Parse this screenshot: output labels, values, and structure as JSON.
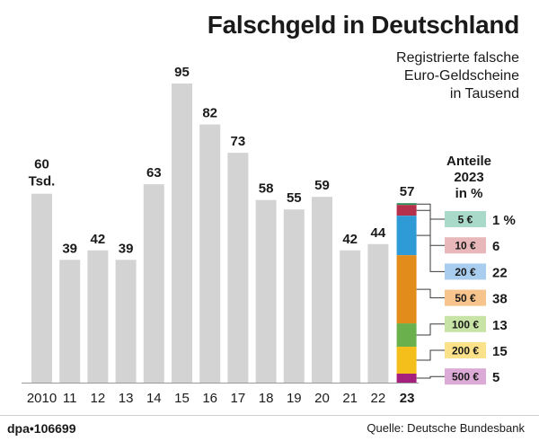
{
  "header": {
    "title": "Falschgeld in Deutschland",
    "subtitle_lines": [
      "Registrierte falsche",
      "Euro-Geldscheine",
      "in Tausend"
    ]
  },
  "footer": {
    "credit": "dpa•106699",
    "source": "Quelle: Deutsche Bundesbank"
  },
  "chart_data": [
    {
      "type": "bar",
      "title": "Falschgeld in Deutschland",
      "ylabel": "Registrierte falsche Euro-Geldscheine in Tausend",
      "categories": [
        "2010",
        "11",
        "12",
        "13",
        "14",
        "15",
        "16",
        "17",
        "18",
        "19",
        "20",
        "21",
        "22",
        "23"
      ],
      "values": [
        60,
        39,
        42,
        39,
        63,
        95,
        82,
        73,
        58,
        55,
        59,
        42,
        44,
        57
      ],
      "first_value_unit": "Tsd.",
      "highlight_category": "23",
      "ylim": [
        0,
        95
      ],
      "grid": false,
      "bar_color": "#d3d3d3"
    },
    {
      "type": "stacked-bar",
      "title_lines": [
        "Anteile",
        "2023",
        "in %"
      ],
      "category": "23",
      "segments": [
        {
          "note": "5 €",
          "percent": 1,
          "percent_label": "1 %",
          "color": "#2e8b57",
          "tag_color": "#a9d9c8"
        },
        {
          "note": "10 €",
          "percent": 6,
          "percent_label": "6",
          "color": "#b5304a",
          "tag_color": "#e8b7b9"
        },
        {
          "note": "20 €",
          "percent": 22,
          "percent_label": "22",
          "color": "#2e9bd6",
          "tag_color": "#a9cdef"
        },
        {
          "note": "50 €",
          "percent": 38,
          "percent_label": "38",
          "color": "#e28c1c",
          "tag_color": "#f6c48c"
        },
        {
          "note": "100 €",
          "percent": 13,
          "percent_label": "13",
          "color": "#6ab04c",
          "tag_color": "#c7e3a6"
        },
        {
          "note": "200 €",
          "percent": 15,
          "percent_label": "15",
          "color": "#f5bf1b",
          "tag_color": "#fbe18a"
        },
        {
          "note": "500 €",
          "percent": 5,
          "percent_label": "5",
          "color": "#a4207c",
          "tag_color": "#dcaad6"
        }
      ]
    }
  ]
}
